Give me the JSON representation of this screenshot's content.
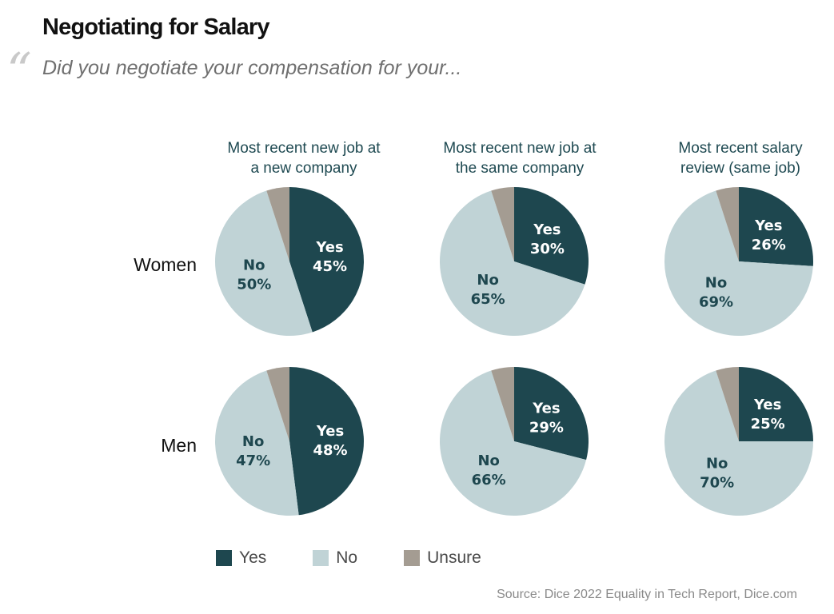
{
  "title": "Negotiating for Salary",
  "subtitle": "Did you negotiate your compensation for your...",
  "source": "Source: Dice 2022 Equality in Tech Report, Dice.com",
  "colors": {
    "yes": "#1e474f",
    "no": "#c0d3d6",
    "unsure": "#a49c92"
  },
  "chart_data": {
    "type": "pie",
    "columns": [
      {
        "line1": "Most recent new job at",
        "line2": "a new company"
      },
      {
        "line1": "Most recent new job at",
        "line2": "the same company"
      },
      {
        "line1": "Most recent salary",
        "line2": "review (same job)"
      }
    ],
    "rows": [
      "Women",
      "Men"
    ],
    "legend": [
      "Yes",
      "No",
      "Unsure"
    ],
    "slice_labels": {
      "yes": "Yes",
      "no": "No"
    },
    "values": [
      [
        {
          "yes": 45,
          "no": 50,
          "unsure": 5
        },
        {
          "yes": 30,
          "no": 65,
          "unsure": 5
        },
        {
          "yes": 26,
          "no": 69,
          "unsure": 5
        }
      ],
      [
        {
          "yes": 48,
          "no": 47,
          "unsure": 5
        },
        {
          "yes": 29,
          "no": 66,
          "unsure": 5
        },
        {
          "yes": 25,
          "no": 70,
          "unsure": 5
        }
      ]
    ]
  }
}
